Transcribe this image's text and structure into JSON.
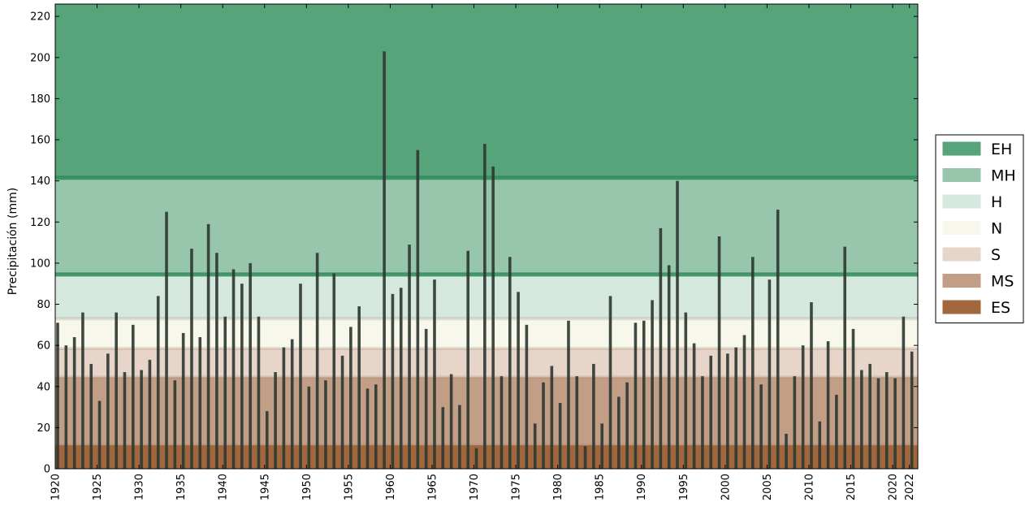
{
  "chart_data": {
    "type": "bar",
    "ylabel": "Precipitación  (mm)",
    "xlabel": "",
    "title": "",
    "xlim": [
      1920,
      2023
    ],
    "ylim": [
      0,
      226
    ],
    "yticks": [
      0,
      20,
      40,
      60,
      80,
      100,
      120,
      140,
      160,
      180,
      200,
      220
    ],
    "xticks": [
      1920,
      1925,
      1930,
      1935,
      1940,
      1945,
      1950,
      1955,
      1960,
      1965,
      1970,
      1975,
      1980,
      1985,
      1990,
      1995,
      2000,
      2005,
      2010,
      2015,
      2020,
      2022
    ],
    "bar_color": "#2f3a33",
    "legend_position": "right",
    "categories_bands": [
      {
        "name": "EH",
        "from": 141.5,
        "to": 226,
        "color": "#57a37a"
      },
      {
        "name": "MH",
        "from": 94.5,
        "to": 141.5,
        "color": "#97c6ad"
      },
      {
        "name": "H",
        "from": 73,
        "to": 94.5,
        "color": "#d5e8dd"
      },
      {
        "name": "N",
        "from": 58.5,
        "to": 73,
        "color": "#f8f7ec"
      },
      {
        "name": "S",
        "from": 44.5,
        "to": 58.5,
        "color": "#e8d5ca"
      },
      {
        "name": "MS",
        "from": 11.5,
        "to": 44.5,
        "color": "#c39e86"
      },
      {
        "name": "ES",
        "from": 0,
        "to": 11.5,
        "color": "#a2663c"
      }
    ],
    "x": [
      1920,
      1921,
      1922,
      1923,
      1924,
      1925,
      1926,
      1927,
      1928,
      1929,
      1930,
      1931,
      1932,
      1933,
      1934,
      1935,
      1936,
      1937,
      1938,
      1939,
      1940,
      1941,
      1942,
      1943,
      1944,
      1945,
      1946,
      1947,
      1948,
      1949,
      1950,
      1951,
      1952,
      1953,
      1954,
      1955,
      1956,
      1957,
      1958,
      1959,
      1960,
      1961,
      1962,
      1963,
      1964,
      1965,
      1966,
      1967,
      1968,
      1969,
      1970,
      1971,
      1972,
      1973,
      1974,
      1975,
      1976,
      1977,
      1978,
      1979,
      1980,
      1981,
      1982,
      1983,
      1984,
      1985,
      1986,
      1987,
      1988,
      1989,
      1990,
      1991,
      1992,
      1993,
      1994,
      1995,
      1996,
      1997,
      1998,
      1999,
      2000,
      2001,
      2002,
      2003,
      2004,
      2005,
      2006,
      2007,
      2008,
      2009,
      2010,
      2011,
      2012,
      2013,
      2014,
      2015,
      2016,
      2017,
      2018,
      2019,
      2020,
      2021,
      2022
    ],
    "values": [
      71,
      60,
      64,
      76,
      51,
      33,
      56,
      76,
      47,
      70,
      48,
      53,
      84,
      125,
      43,
      66,
      107,
      64,
      119,
      105,
      74,
      97,
      90,
      100,
      74,
      28,
      47,
      59,
      63,
      90,
      40,
      105,
      43,
      95,
      55,
      69,
      79,
      39,
      41,
      203,
      85,
      88,
      109,
      155,
      68,
      92,
      30,
      46,
      31,
      106,
      10,
      158,
      147,
      45,
      103,
      86,
      70,
      22,
      42,
      50,
      32,
      72,
      45,
      11,
      51,
      22,
      84,
      35,
      42,
      71,
      72,
      82,
      117,
      99,
      140,
      76,
      61,
      45,
      55,
      113,
      56,
      59,
      65,
      103,
      41,
      92,
      126,
      17,
      45,
      60,
      81,
      23,
      62,
      36,
      108,
      68,
      48,
      51,
      44,
      47,
      44,
      74,
      57
    ]
  }
}
